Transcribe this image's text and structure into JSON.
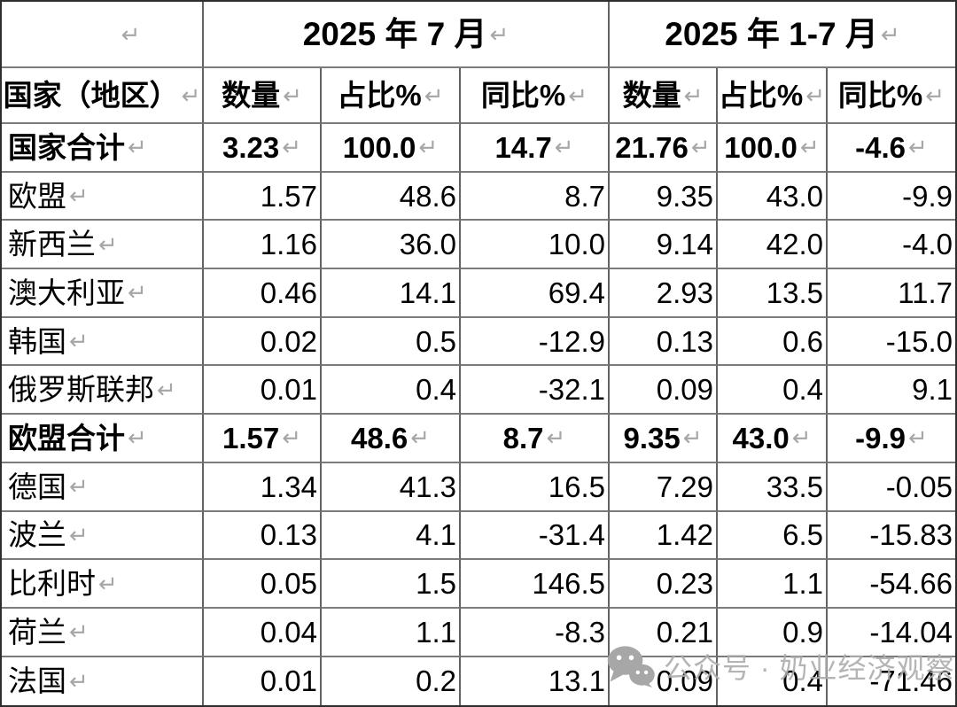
{
  "document": {
    "type": "word-style-table",
    "paragraph_mark": "↵"
  },
  "table": {
    "corner_header": "",
    "year_headers": [
      "2025 年 7 月",
      "2025 年 1-7 月"
    ],
    "column_headers": [
      "国家（地区）",
      "数量",
      "占比%",
      "同比%",
      "数量",
      "占比%",
      "同比%"
    ],
    "rows": [
      {
        "name": "国家合计",
        "bold": true,
        "values": [
          "3.23",
          "100.0",
          "14.7",
          "21.76",
          "100.0",
          "-4.6"
        ]
      },
      {
        "name": "欧盟",
        "bold": false,
        "values": [
          "1.57",
          "48.6",
          "8.7",
          "9.35",
          "43.0",
          "-9.9"
        ]
      },
      {
        "name": "新西兰",
        "bold": false,
        "values": [
          "1.16",
          "36.0",
          "10.0",
          "9.14",
          "42.0",
          "-4.0"
        ]
      },
      {
        "name": "澳大利亚",
        "bold": false,
        "values": [
          "0.46",
          "14.1",
          "69.4",
          "2.93",
          "13.5",
          "11.7"
        ]
      },
      {
        "name": "韩国",
        "bold": false,
        "values": [
          "0.02",
          "0.5",
          "-12.9",
          "0.13",
          "0.6",
          "-15.0"
        ]
      },
      {
        "name": "俄罗斯联邦",
        "bold": false,
        "values": [
          "0.01",
          "0.4",
          "-32.1",
          "0.09",
          "0.4",
          "9.1"
        ]
      },
      {
        "name": "欧盟合计",
        "bold": true,
        "values": [
          "1.57",
          "48.6",
          "8.7",
          "9.35",
          "43.0",
          "-9.9"
        ]
      },
      {
        "name": "德国",
        "bold": false,
        "values": [
          "1.34",
          "41.3",
          "16.5",
          "7.29",
          "33.5",
          "-0.05"
        ]
      },
      {
        "name": "波兰",
        "bold": false,
        "values": [
          "0.13",
          "4.1",
          "-31.4",
          "1.42",
          "6.5",
          "-15.83"
        ]
      },
      {
        "name": "比利时",
        "bold": false,
        "values": [
          "0.05",
          "1.5",
          "146.5",
          "0.23",
          "1.1",
          "-54.66"
        ]
      },
      {
        "name": "荷兰",
        "bold": false,
        "values": [
          "0.04",
          "1.1",
          "-8.3",
          "0.21",
          "0.9",
          "-14.04"
        ]
      },
      {
        "name": "法国",
        "bold": false,
        "values": [
          "0.01",
          "0.2",
          "13.1",
          "0.09",
          "0.4",
          "-71.46"
        ]
      }
    ]
  },
  "watermark": {
    "icon": "wechat-icon",
    "text": "公众号 · 奶业经济观察"
  },
  "colors": {
    "text": "#000000",
    "paragraph_mark": "#a6a6a6",
    "inner_border": "#6e6e6e",
    "outer_border": "#2e2e2e",
    "watermark": "#acacac",
    "background": "#ffffff"
  }
}
